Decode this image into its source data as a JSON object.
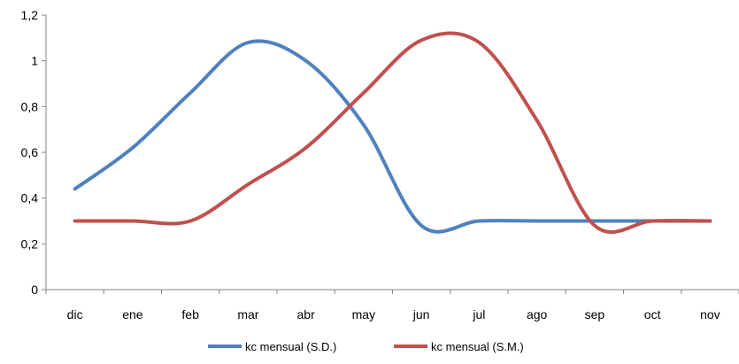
{
  "chart_data": {
    "type": "line",
    "categories": [
      "dic",
      "ene",
      "feb",
      "mar",
      "abr",
      "may",
      "jun",
      "jul",
      "ago",
      "sep",
      "oct",
      "nov"
    ],
    "series": [
      {
        "name": "kc mensual (S.D.)",
        "color": "#4f81bd",
        "values": [
          0.44,
          0.62,
          0.86,
          1.08,
          1.0,
          0.72,
          0.28,
          0.3,
          0.3,
          0.3,
          0.3,
          0.3
        ]
      },
      {
        "name": "kc mensual (S.M.)",
        "color": "#c0504d",
        "values": [
          0.3,
          0.3,
          0.3,
          0.46,
          0.62,
          0.86,
          1.09,
          1.08,
          0.74,
          0.28,
          0.3,
          0.3
        ]
      }
    ],
    "ylim": [
      0,
      1.2
    ],
    "yticks": [
      "0",
      "0,2",
      "0,4",
      "0,6",
      "0,8",
      "1",
      "1,2"
    ],
    "grid": false,
    "legend": "bottom",
    "title": "",
    "xlabel": "",
    "ylabel": ""
  }
}
